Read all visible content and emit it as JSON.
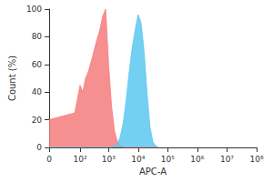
{
  "chart_data": {
    "type": "area",
    "x_label": "APC-A",
    "y_label": "Count (%)",
    "log": "x",
    "grid": false,
    "x": [
      0,
      63,
      100,
      126,
      158,
      200,
      251,
      316,
      398,
      501,
      631,
      794,
      1000,
      1259,
      1585,
      1995,
      2512,
      3162,
      3981,
      5012,
      6310,
      7943,
      10000,
      12589,
      15849,
      19953,
      25119,
      31623,
      39811,
      50119
    ],
    "series": [
      {
        "color": "#f47c7c",
        "values": [
          20,
          25,
          45,
          40,
          50,
          55,
          62,
          70,
          78,
          85,
          95,
          100,
          60,
          30,
          12,
          4,
          1,
          0,
          0,
          0,
          0,
          0,
          0,
          0,
          0,
          0,
          0,
          0,
          0,
          0
        ]
      },
      {
        "color": "#5cc8f0",
        "values": [
          0,
          0,
          0,
          0,
          0,
          0,
          0,
          0,
          0,
          0,
          0,
          0,
          0,
          0,
          1,
          3,
          8,
          18,
          35,
          55,
          72,
          85,
          96,
          90,
          70,
          40,
          15,
          4,
          1,
          0
        ]
      }
    ],
    "xlim": [
      0,
      100000000
    ],
    "xticks": [
      {
        "value": 0,
        "label": "0"
      },
      {
        "value": 100,
        "label": "10²"
      },
      {
        "value": 1000,
        "label": "10³"
      },
      {
        "value": 10000,
        "label": "10⁴"
      },
      {
        "value": 100000,
        "label": "10⁵"
      },
      {
        "value": 1000000,
        "label": "10⁶"
      },
      {
        "value": 10000000,
        "label": "10⁷"
      },
      {
        "value": 100000000,
        "label": "10⁸"
      }
    ],
    "ylim": [
      0,
      100
    ],
    "yticks": [
      0,
      20,
      40,
      60,
      80,
      100
    ]
  }
}
